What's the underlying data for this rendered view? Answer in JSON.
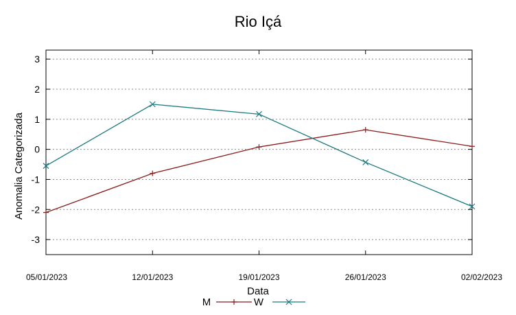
{
  "chart_data": {
    "type": "line",
    "title": "Rio Içá",
    "xlabel": "Data",
    "ylabel": "Anomalia Categorizada",
    "categories": [
      "05/01/2023",
      "12/01/2023",
      "19/01/2023",
      "26/01/2023",
      "02/02/2023"
    ],
    "yticks": [
      "3",
      "2",
      "1",
      "0",
      "-1",
      "-2",
      "-3"
    ],
    "ylim": [
      -3.5,
      3.3
    ],
    "grid": true,
    "legend_position": "bottom",
    "series": [
      {
        "name": "M",
        "color": "#8b1a1a",
        "marker": "plus",
        "values": [
          -2.1,
          -0.8,
          0.08,
          0.65,
          0.1
        ]
      },
      {
        "name": "W",
        "color": "#1a7a80",
        "marker": "cross",
        "values": [
          -0.55,
          1.5,
          1.17,
          -0.43,
          -1.9
        ]
      }
    ]
  }
}
